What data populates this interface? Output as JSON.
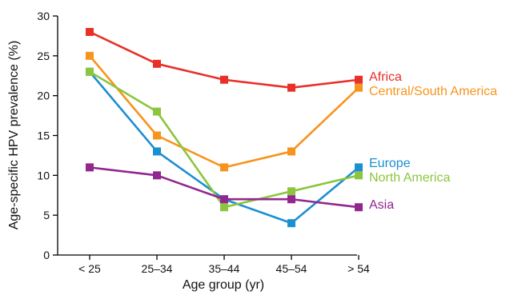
{
  "chart_data": {
    "type": "line",
    "xlabel": "Age group (yr)",
    "ylabel": "Age-specific HPV prevalence (%)",
    "ylim": [
      0,
      30
    ],
    "yticks": [
      0,
      5,
      10,
      15,
      20,
      25,
      30
    ],
    "categories": [
      "< 25",
      "25–34",
      "35–44",
      "45–54",
      "> 54"
    ],
    "grid": false,
    "legend": "direct labels at right end of lines",
    "series": [
      {
        "name": "Africa",
        "color": "#e8302a",
        "values": [
          28,
          24,
          22,
          21,
          22
        ]
      },
      {
        "name": "Central/South America",
        "color": "#f7941d",
        "values": [
          25,
          15,
          11,
          13,
          21
        ]
      },
      {
        "name": "Europe",
        "color": "#1c8fd2",
        "values": [
          23,
          13,
          7,
          4,
          11
        ]
      },
      {
        "name": "North America",
        "color": "#8cc63f",
        "values": [
          23,
          18,
          6,
          8,
          10
        ]
      },
      {
        "name": "Asia",
        "color": "#92278f",
        "values": [
          11,
          10,
          7,
          7,
          6
        ]
      }
    ]
  }
}
